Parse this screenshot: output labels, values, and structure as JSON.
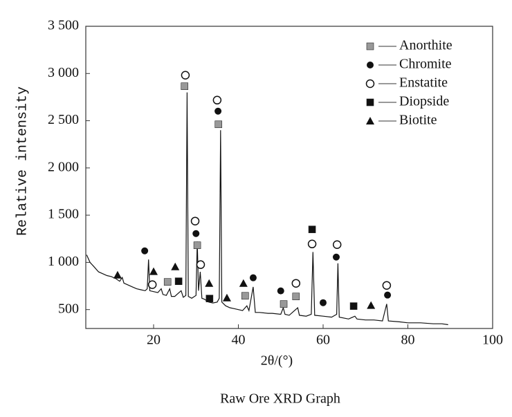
{
  "chart_data": {
    "type": "line",
    "caption": "Raw Ore XRD Graph",
    "xlabel": "2θ/(°)",
    "ylabel": "Relative intensity",
    "color": "#111111",
    "xlim": [
      4,
      100
    ],
    "ylim": [
      300,
      3500
    ],
    "xticks": [
      20,
      40,
      60,
      80,
      100
    ],
    "yticks": [
      {
        "value": 500,
        "label": "500"
      },
      {
        "value": 1000,
        "label": "1 000"
      },
      {
        "value": 1500,
        "label": "1 500"
      },
      {
        "value": 2000,
        "label": "2 000"
      },
      {
        "value": 2500,
        "label": "2 500"
      },
      {
        "value": 3000,
        "label": "3 000"
      },
      {
        "value": 3500,
        "label": "3 500"
      }
    ],
    "legend": "upper right",
    "x": [
      4.2,
      5,
      6,
      7,
      8,
      9,
      10,
      11,
      12,
      12.6,
      13,
      14,
      15,
      16,
      17,
      18,
      18.5,
      18.8,
      19.1,
      20,
      21,
      21.8,
      22.2,
      23,
      23.8,
      24.2,
      25,
      26.5,
      27,
      27.6,
      27.9,
      28.2,
      29,
      30,
      30.3,
      30.6,
      31,
      31.4,
      32,
      33,
      34,
      35,
      35.5,
      35.8,
      36.1,
      37,
      38,
      39,
      40,
      41,
      42,
      42.5,
      43.5,
      44,
      45,
      47,
      48,
      50,
      50.6,
      51,
      52,
      54,
      54.4,
      56,
      57.2,
      57.6,
      58,
      60,
      62,
      63.2,
      63.5,
      63.8,
      66,
      67.5,
      68,
      70,
      72,
      74,
      75,
      75.4,
      78,
      80,
      83,
      86,
      88,
      89.5
    ],
    "values": [
      1080,
      1000,
      950,
      900,
      880,
      860,
      850,
      830,
      800,
      840,
      780,
      760,
      740,
      720,
      710,
      700,
      720,
      1030,
      700,
      690,
      680,
      720,
      660,
      650,
      720,
      640,
      640,
      700,
      630,
      650,
      2800,
      640,
      620,
      650,
      1220,
      700,
      900,
      620,
      610,
      580,
      570,
      580,
      620,
      2400,
      580,
      540,
      520,
      510,
      500,
      490,
      540,
      490,
      740,
      470,
      470,
      460,
      460,
      450,
      520,
      450,
      440,
      520,
      440,
      430,
      450,
      1110,
      440,
      430,
      420,
      450,
      990,
      420,
      400,
      430,
      400,
      390,
      390,
      380,
      560,
      380,
      370,
      360,
      360,
      350,
      350,
      340
    ],
    "phases": [
      {
        "name": "Anorthite",
        "symbol": "square",
        "color": "#999999",
        "x": [
          27.3,
          35.3,
          30.3,
          23.3,
          41.6,
          50.7,
          53.6
        ],
        "y": [
          2865,
          2462,
          1181,
          793,
          646,
          559,
          639
        ]
      },
      {
        "name": "Chromite",
        "symbol": "circle",
        "color": "#111111",
        "x": [
          17.9,
          30.0,
          35.2,
          43.5,
          50.0,
          60.0,
          63.1,
          75.2
        ],
        "y": [
          1122,
          1305,
          2601,
          837,
          698,
          573,
          1056,
          654
        ]
      },
      {
        "name": "Enstatite",
        "symbol": "open-circle",
        "color": "#111111",
        "x": [
          27.5,
          35.0,
          29.8,
          31.1,
          19.7,
          53.6,
          57.4,
          63.3,
          75.0
        ],
        "y": [
          2982,
          2718,
          1437,
          976,
          764,
          778,
          1195,
          1188,
          756
        ]
      },
      {
        "name": "Diopside",
        "symbol": "square",
        "color": "#111111",
        "x": [
          25.9,
          33.2,
          57.4,
          67.2
        ],
        "y": [
          800,
          617,
          1349,
          537
        ]
      },
      {
        "name": "Biotite",
        "symbol": "triangle",
        "color": "#111111",
        "x": [
          11.5,
          20.0,
          25.1,
          33.1,
          37.3,
          41.2,
          71.3
        ],
        "y": [
          866,
          903,
          954,
          778,
          624,
          778,
          544
        ]
      }
    ]
  }
}
